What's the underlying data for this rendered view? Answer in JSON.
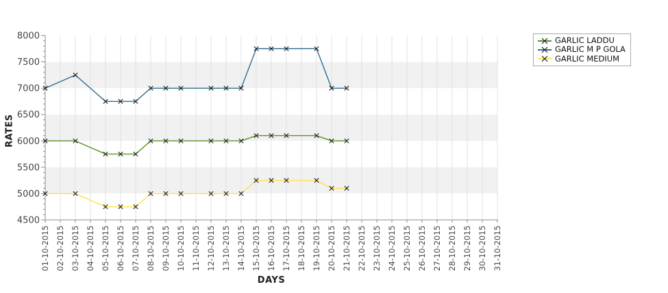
{
  "chart_data": {
    "type": "line",
    "title": "",
    "xlabel": "DAYS",
    "ylabel": "RATES",
    "ylim": [
      4500,
      8000
    ],
    "y_tick_step": 500,
    "y_minor_tick_step": 100,
    "y_tick_labels": [
      "4500",
      "5000",
      "5500",
      "6000",
      "6500",
      "7000",
      "7500",
      "8000"
    ],
    "x_tick_labels": [
      "01-10-2015",
      "02-10-2015",
      "03-10-2015",
      "04-10-2015",
      "05-10-2015",
      "06-10-2015",
      "07-10-2015",
      "08-10-2015",
      "09-10-2015",
      "10-10-2015",
      "11-10-2015",
      "12-10-2015",
      "13-10-2015",
      "14-10-2015",
      "15-10-2015",
      "16-10-2015",
      "17-10-2015",
      "18-10-2015",
      "19-10-2015",
      "20-10-2015",
      "21-10-2015",
      "22-10-2015",
      "23-10-2015",
      "24-10-2015",
      "25-10-2015",
      "26-10-2015",
      "27-10-2015",
      "28-10-2015",
      "29-10-2015",
      "30-10-2015",
      "31-10-2015"
    ],
    "x_days_with_data": [
      1,
      3,
      5,
      6,
      7,
      8,
      9,
      10,
      12,
      13,
      14,
      15,
      16,
      17,
      19,
      20,
      21
    ],
    "marker": "x",
    "marker_color": "#1a1a1a",
    "grid": true,
    "gridline_color": "#e1e1e1",
    "axis_color": "#8c8c8c",
    "tick_label_color": "#454545",
    "band_colors": [
      "#ffffff",
      "#f1f1f1"
    ],
    "legend_position": "top-right",
    "series": [
      {
        "name": "GARLIC LADDU",
        "color": "#55941f",
        "values": [
          6000,
          6000,
          5750,
          5750,
          5750,
          6000,
          6000,
          6000,
          6000,
          6000,
          6000,
          6100,
          6100,
          6100,
          6100,
          6000,
          6000
        ]
      },
      {
        "name": "GARLIC M P GOLA",
        "color": "#2d6e91",
        "values": [
          7000,
          7250,
          6750,
          6750,
          6750,
          7000,
          7000,
          7000,
          7000,
          7000,
          7000,
          7750,
          7750,
          7750,
          7750,
          7000,
          7000
        ]
      },
      {
        "name": "GARLIC MEDIUM",
        "color": "#fee04e",
        "values": [
          5000,
          5000,
          4750,
          4750,
          4750,
          5000,
          5000,
          5000,
          5000,
          5000,
          5000,
          5250,
          5250,
          5250,
          5250,
          5100,
          5100
        ]
      }
    ]
  }
}
